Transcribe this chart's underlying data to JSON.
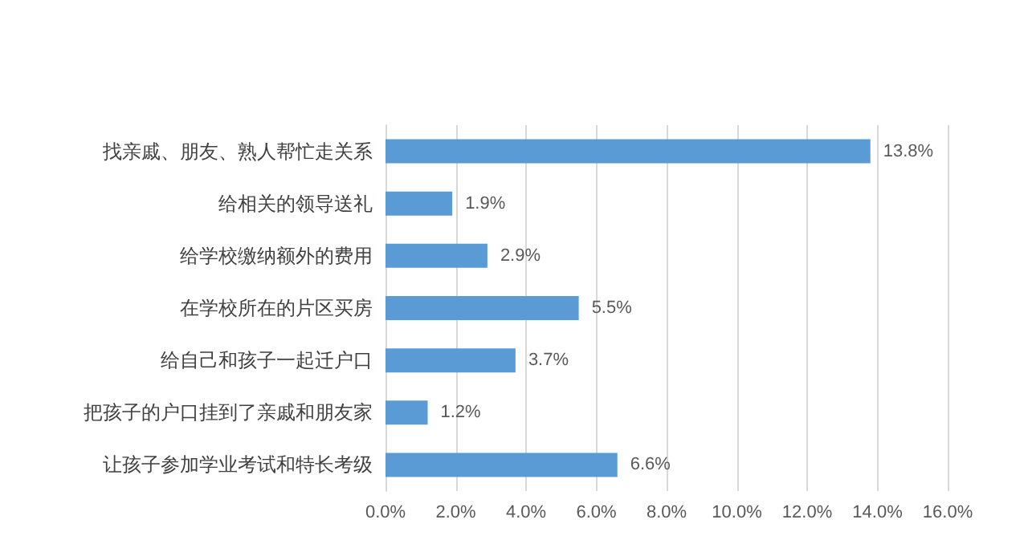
{
  "chart_data": {
    "type": "bar",
    "orientation": "horizontal",
    "categories": [
      "找亲戚、朋友、熟人帮忙走关系",
      "给相关的领导送礼",
      "给学校缴纳额外的费用",
      "在学校所在的片区买房",
      "给自己和孩子一起迁户口",
      "把孩子的户口挂到了亲戚和朋友家",
      "让孩子参加学业考试和特长考级"
    ],
    "values": [
      13.8,
      1.9,
      2.9,
      5.5,
      3.7,
      1.2,
      6.6
    ],
    "value_labels": [
      "13.8%",
      "1.9%",
      "2.9%",
      "5.5%",
      "3.7%",
      "1.2%",
      "6.6%"
    ],
    "color": "#5b9bd5",
    "xlim": [
      0,
      16
    ],
    "xticks": [
      {
        "value": 0,
        "label": "0.0%"
      },
      {
        "value": 2,
        "label": "2.0%"
      },
      {
        "value": 4,
        "label": "4.0%"
      },
      {
        "value": 6,
        "label": "6.0%"
      },
      {
        "value": 8,
        "label": "8.0%"
      },
      {
        "value": 10,
        "label": "10.0%"
      },
      {
        "value": 12,
        "label": "12.0%"
      },
      {
        "value": 14,
        "label": "14.0%"
      },
      {
        "value": 16,
        "label": "16.0%"
      }
    ],
    "grid": "x"
  }
}
